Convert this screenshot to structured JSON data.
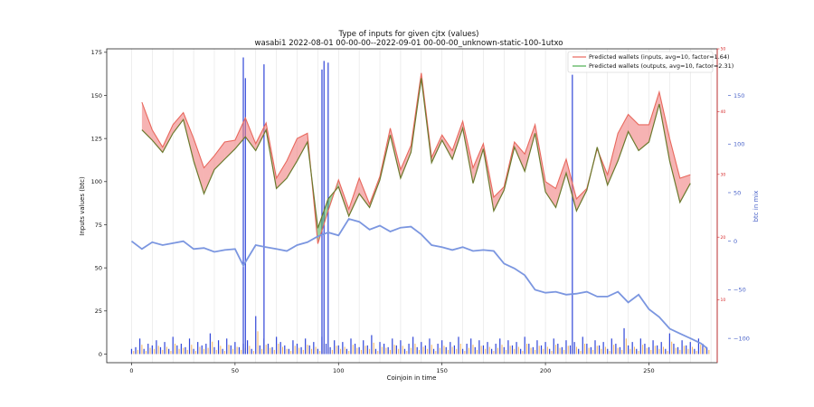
{
  "chart_data": {
    "type": "line",
    "title": "Type of inputs for given cjtx (values)",
    "subtitle": "wasabi1 2022-08-01 00-00-00--2022-09-01 00-00-00_unknown-static-100-1utxo",
    "xlabel": "Coinjoin in time",
    "ylabel": "Inputs values (btc)",
    "ylabel_right": "btc in mix",
    "xlim": [
      -12,
      283
    ],
    "ylim": [
      -5,
      177
    ],
    "ylim_right": [
      -125,
      198
    ],
    "ylim_red": [
      0,
      50
    ],
    "x_ticks": [
      "0",
      "50",
      "100",
      "150",
      "200",
      "250"
    ],
    "y_ticks": [
      "0",
      "25",
      "50",
      "75",
      "100",
      "125",
      "150",
      "175"
    ],
    "y_ticks_right": [
      "−100",
      "−50",
      "0",
      "50",
      "100",
      "150"
    ],
    "y_ticks_red": [
      "10",
      "20",
      "30",
      "40",
      "50"
    ],
    "grid": "vertical",
    "legend_position": "top-right",
    "legend": [
      {
        "label": "Predicted wallets (inputs, avg=10, factor=1.64)",
        "color": "#e8685d"
      },
      {
        "label": "Predicted wallets (outputs, avg=10, factor=2.31)",
        "color": "#4caf50"
      }
    ],
    "series": [
      {
        "name": "Predicted wallets (outputs, avg=10, factor=2.31)",
        "x": [
          5,
          10,
          15,
          20,
          25,
          30,
          35,
          40,
          45,
          50,
          55,
          60,
          65,
          70,
          75,
          80,
          85,
          90,
          95,
          100,
          105,
          110,
          115,
          120,
          125,
          130,
          135,
          140,
          145,
          150,
          155,
          160,
          165,
          170,
          175,
          180,
          185,
          190,
          195,
          200,
          205,
          210,
          215,
          220,
          225,
          230,
          235,
          240,
          245,
          250,
          255,
          260,
          265,
          270
        ],
        "values": [
          130,
          124,
          117,
          128,
          136,
          112,
          93,
          107,
          113,
          119,
          126,
          118,
          130,
          96,
          102,
          112,
          123,
          73,
          90,
          97,
          80,
          93,
          85,
          101,
          127,
          102,
          117,
          160,
          111,
          124,
          113,
          131,
          99,
          119,
          83,
          95,
          120,
          106,
          128,
          94,
          85,
          105,
          83,
          95,
          120,
          98,
          112,
          129,
          118,
          123,
          145,
          112,
          88,
          99
        ]
      },
      {
        "name": "Predicted wallets (inputs, avg=10, factor=1.64)",
        "x": [
          5,
          10,
          15,
          20,
          25,
          30,
          35,
          40,
          45,
          50,
          55,
          60,
          65,
          70,
          75,
          80,
          85,
          90,
          95,
          100,
          105,
          110,
          115,
          120,
          125,
          130,
          135,
          140,
          145,
          150,
          155,
          160,
          165,
          170,
          175,
          180,
          185,
          190,
          195,
          200,
          205,
          210,
          215,
          220,
          225,
          230,
          235,
          240,
          245,
          250,
          255,
          260,
          265,
          270
        ],
        "values": [
          146,
          130,
          120,
          133,
          140,
          125,
          108,
          115,
          123,
          124,
          137,
          122,
          134,
          102,
          112,
          125,
          128,
          64,
          83,
          101,
          84,
          102,
          87,
          103,
          131,
          107,
          121,
          163,
          114,
          127,
          118,
          135,
          108,
          122,
          91,
          97,
          123,
          116,
          133,
          100,
          96,
          113,
          90,
          96,
          119,
          104,
          128,
          139,
          133,
          133,
          152,
          125,
          102,
          104
        ]
      },
      {
        "name": "btc in mix",
        "x": [
          0,
          5,
          10,
          15,
          20,
          25,
          30,
          35,
          40,
          45,
          50,
          54,
          60,
          65,
          70,
          75,
          80,
          85,
          90,
          95,
          100,
          105,
          110,
          115,
          120,
          125,
          130,
          135,
          140,
          145,
          150,
          155,
          160,
          165,
          170,
          175,
          180,
          185,
          190,
          195,
          200,
          205,
          210,
          215,
          220,
          225,
          230,
          235,
          240,
          245,
          250,
          255,
          260,
          265,
          270,
          275,
          278
        ],
        "values": [
          0,
          -8,
          -1,
          -4,
          -2,
          0,
          -8,
          -7,
          -11,
          -9,
          -8,
          -25,
          -4,
          -6,
          -8,
          -10,
          -4,
          -1,
          5,
          9,
          6,
          23,
          20,
          12,
          16,
          10,
          14,
          15,
          7,
          -4,
          -6,
          -9,
          -6,
          -10,
          -9,
          -10,
          -23,
          -28,
          -35,
          -50,
          -53,
          -52,
          -55,
          -54,
          -52,
          -57,
          -57,
          -52,
          -63,
          -55,
          -70,
          -78,
          -90,
          -95,
          -100,
          -105,
          -110
        ]
      }
    ],
    "bars": {
      "x": [
        0,
        2,
        4,
        6,
        8,
        10,
        12,
        14,
        16,
        18,
        20,
        22,
        24,
        26,
        28,
        30,
        32,
        34,
        36,
        38,
        40,
        42,
        44,
        46,
        48,
        50,
        52,
        54,
        56,
        58,
        60,
        62,
        64,
        66,
        68,
        70,
        72,
        74,
        76,
        78,
        80,
        82,
        84,
        86,
        88,
        90,
        92,
        94,
        96,
        98,
        100,
        102,
        104,
        106,
        108,
        110,
        112,
        114,
        116,
        118,
        120,
        122,
        124,
        126,
        128,
        130,
        132,
        134,
        136,
        138,
        140,
        142,
        144,
        146,
        148,
        150,
        152,
        154,
        156,
        158,
        160,
        162,
        164,
        166,
        168,
        170,
        172,
        174,
        176,
        178,
        180,
        182,
        184,
        186,
        188,
        190,
        192,
        194,
        196,
        198,
        200,
        202,
        204,
        206,
        208,
        210,
        212,
        214,
        216,
        218,
        220,
        222,
        224,
        226,
        228,
        230,
        232,
        234,
        236,
        238,
        240,
        242,
        244,
        246,
        248,
        250,
        252,
        254,
        256,
        258,
        260,
        262,
        264,
        266,
        268,
        270,
        272,
        274,
        276,
        278
      ],
      "values": [
        3,
        4,
        9,
        3,
        6,
        5,
        8,
        4,
        7,
        3,
        10,
        5,
        6,
        4,
        9,
        3,
        7,
        5,
        6,
        12,
        4,
        8,
        3,
        9,
        5,
        7,
        4,
        6,
        8,
        3,
        22,
        5,
        9,
        6,
        4,
        10,
        7,
        5,
        3,
        8,
        6,
        4,
        9,
        5,
        7,
        3,
        10,
        6,
        4,
        8,
        5,
        7,
        3,
        9,
        6,
        4,
        8,
        5,
        11,
        3,
        7,
        6,
        4,
        9,
        5,
        8,
        3,
        6,
        10,
        4,
        7,
        5,
        9,
        3,
        6,
        8,
        4,
        7,
        5,
        10,
        3,
        6,
        9,
        4,
        8,
        5,
        7,
        3,
        6,
        9,
        4,
        8,
        5,
        7,
        3,
        10,
        6,
        4,
        8,
        5,
        7,
        3,
        9,
        6,
        4,
        8,
        5,
        7,
        3,
        10,
        6,
        4,
        8,
        5,
        7,
        3,
        9,
        6,
        4,
        15,
        5,
        7,
        3,
        9,
        6,
        4,
        8,
        5,
        7,
        3,
        12,
        6,
        4,
        8,
        5,
        7,
        3,
        9,
        6,
        4
      ]
    },
    "spikes": {
      "x": [
        54,
        55,
        64,
        92,
        93,
        95,
        213
      ],
      "values": [
        172,
        160,
        168,
        165,
        170,
        169,
        162
      ]
    }
  }
}
